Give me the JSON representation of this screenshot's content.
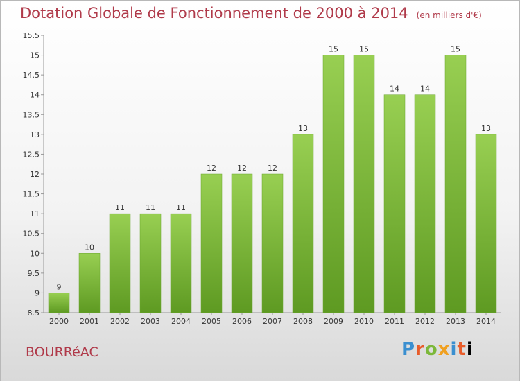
{
  "header": {
    "title": "Dotation Globale de Fonctionnement de 2000 à 2014",
    "subtitle": "(en milliers d'€)"
  },
  "commune": "BOURRéAC",
  "logo": {
    "letters": [
      "P",
      "r",
      "o",
      "x",
      "i",
      "t",
      "i"
    ]
  },
  "colors": {
    "bar": "#7cb83a",
    "bar_light": "#98cf52",
    "bar_dark": "#5e9a22",
    "title": "#b03a4a"
  },
  "chart_data": {
    "type": "bar",
    "title": "Dotation Globale de Fonctionnement de 2000 à 2014",
    "subtitle": "(en milliers d'€)",
    "categories": [
      "2000",
      "2001",
      "2002",
      "2003",
      "2004",
      "2005",
      "2006",
      "2007",
      "2008",
      "2009",
      "2010",
      "2011",
      "2012",
      "2013",
      "2014"
    ],
    "values": [
      9,
      10,
      11,
      11,
      11,
      12,
      12,
      12,
      13,
      15,
      15,
      14,
      14,
      15,
      13
    ],
    "ylim": [
      8.5,
      15.5
    ],
    "yticks": [
      8.5,
      9,
      9.5,
      10,
      10.5,
      11,
      11.5,
      12,
      12.5,
      13,
      13.5,
      14,
      14.5,
      15,
      15.5
    ],
    "ytick_labels": [
      "8.5",
      "9",
      "9.5",
      "10",
      "10.5",
      "11",
      "11.5",
      "12",
      "12.5",
      "13",
      "13.5",
      "14",
      "14.5",
      "15",
      "15.5"
    ],
    "grid": false,
    "legend": "none"
  }
}
